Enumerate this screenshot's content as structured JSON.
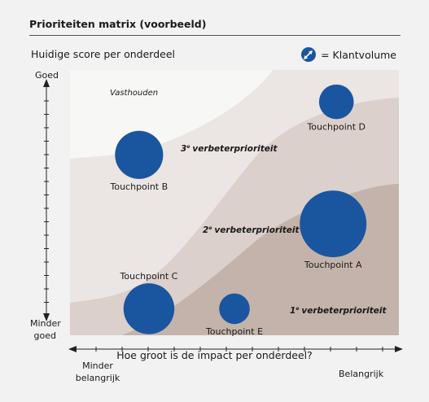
{
  "title": "Prioriteiten matrix (voorbeeld)",
  "subtitle": "Huidige score per onderdeel",
  "legend": {
    "label": "= Klantvolume",
    "icon": "bubble-size-icon"
  },
  "axes": {
    "y_top": "Goed",
    "y_bottom": "Minder\ngoed",
    "x_title": "Hoe groot is de impact per onderdeel?",
    "x_left": "Minder\nbelangrijk",
    "x_right": "Belangrijk"
  },
  "zones": {
    "keep": "Vasthouden",
    "third": "verbeterprioriteit",
    "third_num": "3",
    "second": "verbeterprioriteit",
    "second_num": "2",
    "first": "verbeterprioriteit",
    "first_num": "1",
    "suffix": "e"
  },
  "colors": {
    "bubble": "#1a56a0",
    "zone_keep": "#f7f7f6",
    "zone_3": "#ebe6e3",
    "zone_2": "#dbd0cb",
    "zone_1": "#c4b3aa",
    "background": "#f2f2f2"
  },
  "chart_data": {
    "type": "scatter",
    "x_scale": "relative impact (Minder belangrijk → Belangrijk)",
    "y_scale": "relative score (Minder goed → Goed)",
    "xlim": [
      0,
      100
    ],
    "ylim": [
      0,
      100
    ],
    "points": [
      {
        "name": "Touchpoint A",
        "x": 80,
        "y": 42,
        "size": 100
      },
      {
        "name": "Touchpoint B",
        "x": 21,
        "y": 68,
        "size": 52
      },
      {
        "name": "Touchpoint C",
        "x": 24,
        "y": 10,
        "size": 58
      },
      {
        "name": "Touchpoint D",
        "x": 81,
        "y": 88,
        "size": 27
      },
      {
        "name": "Touchpoint E",
        "x": 50,
        "y": 10,
        "size": 21
      }
    ]
  }
}
